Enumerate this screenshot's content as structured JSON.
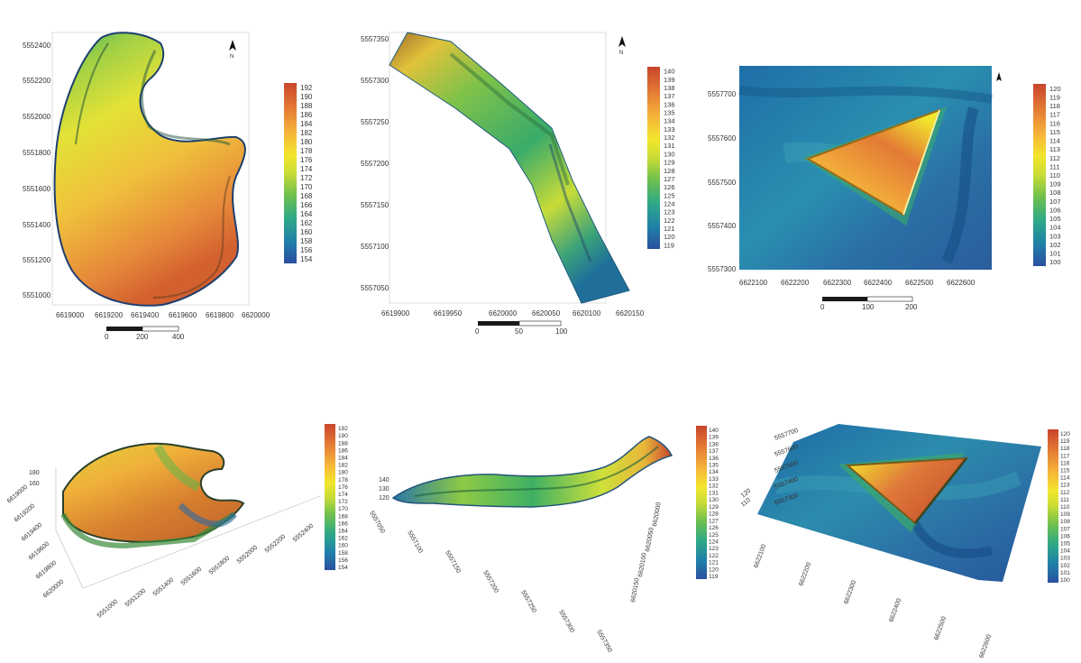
{
  "colors": {
    "ramp": [
      "#2b4fa0",
      "#1f7fa8",
      "#2ea987",
      "#6fc04d",
      "#c9dc36",
      "#f2e62c",
      "#f6b63a",
      "#e47b35",
      "#c8452c"
    ],
    "frame": "#dddddd",
    "scalebar": "#1a1a1a"
  },
  "north_icon": "north-arrow-icon",
  "north_label": "N",
  "maps": [
    {
      "id": "map1",
      "y_ticks": [
        "5552400",
        "5552200",
        "5552000",
        "5551800",
        "5551600",
        "5551400",
        "5551200",
        "5551000"
      ],
      "x_ticks": [
        "6619000",
        "6619200",
        "6619400",
        "6619600",
        "6619800",
        "6620000"
      ],
      "scale_ticks": [
        "0",
        "200",
        "400"
      ],
      "legend": [
        "192",
        "190",
        "188",
        "186",
        "184",
        "182",
        "180",
        "178",
        "176",
        "174",
        "172",
        "170",
        "168",
        "166",
        "164",
        "162",
        "160",
        "158",
        "156",
        "154"
      ]
    },
    {
      "id": "map2",
      "y_ticks": [
        "5557350",
        "5557300",
        "5557250",
        "5557200",
        "5557150",
        "5557100",
        "5557050"
      ],
      "x_ticks": [
        "6619900",
        "6619950",
        "6620000",
        "6620050",
        "6620100",
        "6620150"
      ],
      "scale_ticks": [
        "0",
        "50",
        "100"
      ],
      "legend": [
        "140",
        "139",
        "138",
        "137",
        "136",
        "135",
        "134",
        "133",
        "132",
        "131",
        "130",
        "129",
        "128",
        "127",
        "126",
        "125",
        "124",
        "123",
        "122",
        "121",
        "120",
        "119"
      ]
    },
    {
      "id": "map3",
      "y_ticks": [
        "5557700",
        "5557600",
        "5557500",
        "5557400",
        "5557300"
      ],
      "x_ticks": [
        "6622100",
        "6622200",
        "6622300",
        "6622400",
        "6622500",
        "6622600"
      ],
      "scale_ticks": [
        "0",
        "100",
        "200"
      ],
      "legend": [
        "120",
        "119",
        "118",
        "117",
        "116",
        "115",
        "114",
        "113",
        "112",
        "111",
        "110",
        "109",
        "108",
        "107",
        "106",
        "105",
        "104",
        "103",
        "102",
        "101",
        "100"
      ]
    }
  ],
  "views3d": [
    {
      "id": "view1",
      "z_ticks": [
        "180",
        "160"
      ],
      "left_ticks": [
        "6619000",
        "6619200",
        "6619400",
        "6619600",
        "6619800",
        "6620000"
      ],
      "bottom_ticks": [
        "5551000",
        "5551200",
        "5551400",
        "5551600",
        "5551800",
        "5552000",
        "5552200",
        "5552400"
      ],
      "legend": [
        "192",
        "190",
        "188",
        "186",
        "184",
        "182",
        "180",
        "178",
        "176",
        "174",
        "172",
        "170",
        "168",
        "166",
        "164",
        "162",
        "160",
        "158",
        "156",
        "154"
      ]
    },
    {
      "id": "view2",
      "z_ticks": [
        "140",
        "130",
        "120"
      ],
      "left_ticks": [
        "5557050",
        "5557100",
        "5557150",
        "5557200",
        "5557250",
        "5557300",
        "5557350"
      ],
      "right_ticks": [
        "6620150",
        "6620100",
        "6620050",
        "6620000"
      ],
      "legend": [
        "140",
        "139",
        "138",
        "137",
        "136",
        "135",
        "134",
        "133",
        "132",
        "131",
        "130",
        "129",
        "128",
        "127",
        "126",
        "125",
        "124",
        "123",
        "122",
        "121",
        "120",
        "119"
      ]
    },
    {
      "id": "view3",
      "z_ticks": [
        "120",
        "110"
      ],
      "left_ticks": [
        "5557700",
        "5557600",
        "5557500",
        "5557400",
        "5557300"
      ],
      "bottom_ticks": [
        "6622100",
        "6622200",
        "6622300",
        "6622400",
        "6622500",
        "6622600"
      ],
      "legend": [
        "120",
        "119",
        "118",
        "117",
        "116",
        "115",
        "114",
        "113",
        "112",
        "111",
        "110",
        "109",
        "108",
        "107",
        "106",
        "105",
        "104",
        "103",
        "102",
        "101",
        "100"
      ]
    }
  ]
}
